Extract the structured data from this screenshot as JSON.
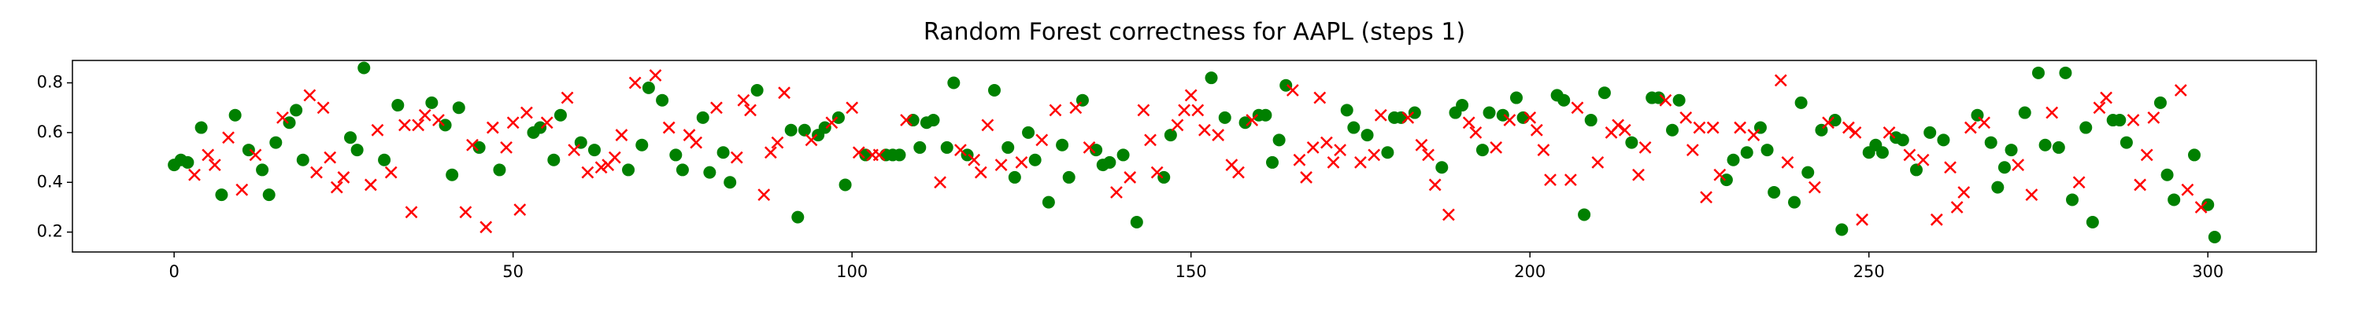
{
  "chart_data": {
    "type": "scatter",
    "title": "Random Forest correctness for AAPL (steps 1)",
    "xlim": [
      -15,
      316
    ],
    "xticks": [
      0,
      50,
      100,
      150,
      200,
      250,
      300
    ],
    "ylim": [
      0.12,
      0.89
    ],
    "yticks": [
      0.2,
      0.4,
      0.6,
      0.8
    ],
    "grid": false,
    "series": [
      {
        "color": "green",
        "marker": "o",
        "x": [
          0,
          1,
          2,
          4,
          7,
          9,
          11,
          13,
          14,
          15,
          17,
          18,
          19,
          26,
          27,
          28,
          31,
          33,
          38,
          40,
          41,
          42,
          45,
          48,
          53,
          54,
          56,
          57,
          60,
          62,
          67,
          69,
          70,
          72,
          74,
          75,
          78,
          79,
          81,
          82,
          86,
          91,
          92,
          93,
          95,
          96,
          98,
          99,
          102,
          105,
          106,
          107,
          109,
          110,
          111,
          112,
          114,
          115,
          117,
          121,
          123,
          124,
          126,
          127,
          129,
          131,
          132,
          134,
          136,
          137,
          138,
          140,
          142,
          146,
          147,
          153,
          155,
          158,
          160,
          161,
          162,
          163,
          164,
          173,
          174,
          176,
          179,
          180,
          181,
          183,
          187,
          189,
          190,
          193,
          194,
          196,
          198,
          199,
          204,
          205,
          208,
          209,
          211,
          215,
          218,
          219,
          221,
          222,
          229,
          230,
          232,
          234,
          235,
          236,
          239,
          240,
          241,
          243,
          245,
          246,
          250,
          251,
          252,
          254,
          255,
          257,
          259,
          261,
          266,
          268,
          269,
          270,
          271,
          273,
          275,
          276,
          278,
          279,
          280,
          282,
          283,
          286,
          287,
          288,
          293,
          294,
          295,
          298,
          300,
          301
        ],
        "values": [
          0.47,
          0.49,
          0.48,
          0.62,
          0.35,
          0.67,
          0.53,
          0.45,
          0.35,
          0.56,
          0.64,
          0.69,
          0.49,
          0.58,
          0.53,
          0.86,
          0.49,
          0.71,
          0.72,
          0.63,
          0.43,
          0.7,
          0.54,
          0.45,
          0.6,
          0.62,
          0.49,
          0.67,
          0.56,
          0.53,
          0.45,
          0.55,
          0.78,
          0.73,
          0.51,
          0.45,
          0.66,
          0.44,
          0.52,
          0.4,
          0.77,
          0.61,
          0.26,
          0.61,
          0.59,
          0.62,
          0.66,
          0.39,
          0.51,
          0.51,
          0.51,
          0.51,
          0.65,
          0.54,
          0.64,
          0.65,
          0.54,
          0.8,
          0.51,
          0.77,
          0.54,
          0.42,
          0.6,
          0.49,
          0.32,
          0.55,
          0.42,
          0.73,
          0.53,
          0.47,
          0.48,
          0.51,
          0.24,
          0.42,
          0.59,
          0.82,
          0.66,
          0.64,
          0.67,
          0.67,
          0.48,
          0.57,
          0.79,
          0.69,
          0.62,
          0.59,
          0.52,
          0.66,
          0.66,
          0.68,
          0.46,
          0.68,
          0.71,
          0.53,
          0.68,
          0.67,
          0.74,
          0.66,
          0.75,
          0.73,
          0.27,
          0.65,
          0.76,
          0.56,
          0.74,
          0.74,
          0.61,
          0.73,
          0.41,
          0.49,
          0.52,
          0.62,
          0.53,
          0.36,
          0.32,
          0.72,
          0.44,
          0.61,
          0.65,
          0.21,
          0.52,
          0.55,
          0.52,
          0.58,
          0.57,
          0.45,
          0.6,
          0.57,
          0.67,
          0.56,
          0.38,
          0.46,
          0.53,
          0.68,
          0.84,
          0.55,
          0.54,
          0.84,
          0.33,
          0.62,
          0.24,
          0.65,
          0.65,
          0.56,
          0.72,
          0.43,
          0.33,
          0.51,
          0.31,
          0.18
        ]
      },
      {
        "color": "red",
        "marker": "x",
        "x": [
          3,
          5,
          6,
          8,
          10,
          12,
          16,
          20,
          21,
          22,
          23,
          24,
          25,
          29,
          30,
          32,
          34,
          35,
          36,
          37,
          39,
          43,
          44,
          46,
          47,
          49,
          50,
          51,
          52,
          55,
          58,
          59,
          61,
          63,
          64,
          65,
          66,
          68,
          71,
          73,
          76,
          77,
          80,
          83,
          84,
          85,
          87,
          88,
          89,
          90,
          94,
          97,
          100,
          101,
          103,
          104,
          108,
          113,
          116,
          118,
          119,
          120,
          122,
          125,
          128,
          130,
          133,
          135,
          139,
          141,
          143,
          144,
          145,
          148,
          149,
          150,
          151,
          152,
          154,
          156,
          157,
          159,
          165,
          166,
          167,
          168,
          169,
          170,
          171,
          172,
          175,
          177,
          178,
          182,
          184,
          185,
          186,
          188,
          191,
          192,
          195,
          197,
          200,
          201,
          202,
          203,
          206,
          207,
          210,
          212,
          213,
          214,
          216,
          217,
          220,
          223,
          224,
          225,
          226,
          227,
          228,
          231,
          233,
          237,
          238,
          242,
          244,
          247,
          248,
          249,
          253,
          256,
          258,
          260,
          262,
          263,
          264,
          265,
          267,
          272,
          274,
          277,
          281,
          284,
          285,
          289,
          290,
          291,
          292,
          296,
          297,
          299
        ],
        "values": [
          0.43,
          0.51,
          0.47,
          0.58,
          0.37,
          0.51,
          0.66,
          0.75,
          0.44,
          0.7,
          0.5,
          0.38,
          0.42,
          0.39,
          0.61,
          0.44,
          0.63,
          0.28,
          0.63,
          0.67,
          0.65,
          0.28,
          0.55,
          0.22,
          0.62,
          0.54,
          0.64,
          0.29,
          0.68,
          0.64,
          0.74,
          0.53,
          0.44,
          0.46,
          0.47,
          0.5,
          0.59,
          0.8,
          0.83,
          0.62,
          0.59,
          0.56,
          0.7,
          0.5,
          0.73,
          0.69,
          0.35,
          0.52,
          0.56,
          0.76,
          0.57,
          0.64,
          0.7,
          0.52,
          0.51,
          0.51,
          0.65,
          0.4,
          0.53,
          0.49,
          0.44,
          0.63,
          0.47,
          0.48,
          0.57,
          0.69,
          0.7,
          0.54,
          0.36,
          0.42,
          0.69,
          0.57,
          0.44,
          0.63,
          0.69,
          0.75,
          0.69,
          0.61,
          0.59,
          0.47,
          0.44,
          0.65,
          0.77,
          0.49,
          0.42,
          0.54,
          0.74,
          0.56,
          0.48,
          0.53,
          0.48,
          0.51,
          0.67,
          0.66,
          0.55,
          0.51,
          0.39,
          0.27,
          0.64,
          0.6,
          0.54,
          0.65,
          0.66,
          0.61,
          0.53,
          0.41,
          0.41,
          0.7,
          0.48,
          0.6,
          0.63,
          0.61,
          0.43,
          0.54,
          0.73,
          0.66,
          0.53,
          0.62,
          0.34,
          0.62,
          0.43,
          0.62,
          0.59,
          0.81,
          0.48,
          0.38,
          0.64,
          0.62,
          0.6,
          0.25,
          0.6,
          0.51,
          0.49,
          0.25,
          0.46,
          0.3,
          0.36,
          0.62,
          0.64,
          0.47,
          0.35,
          0.68,
          0.4,
          0.7,
          0.74,
          0.65,
          0.39,
          0.51,
          0.66,
          0.77,
          0.37,
          0.3
        ]
      }
    ]
  }
}
